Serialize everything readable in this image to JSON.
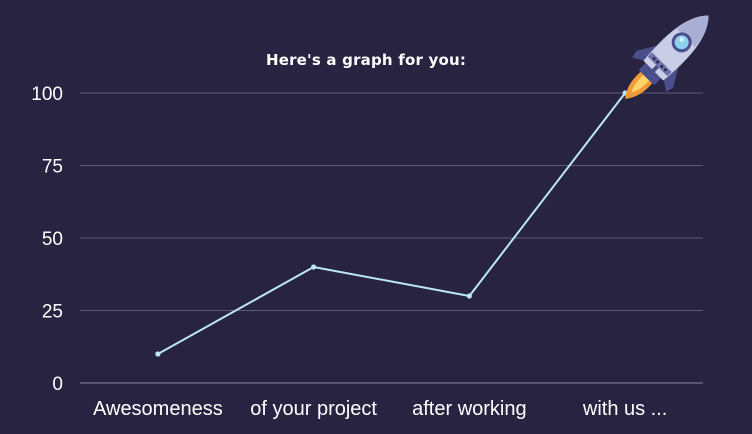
{
  "chart_data": {
    "type": "line",
    "title": "Here's a graph for you:",
    "categories": [
      "Awesomeness",
      "of your project",
      "after working",
      "with us ..."
    ],
    "series": [
      {
        "values": [
          10,
          40,
          30,
          100
        ]
      }
    ],
    "ylim": [
      0,
      100
    ],
    "yticks": [
      0,
      25,
      50,
      75,
      100
    ],
    "grid": true,
    "legend": "none"
  },
  "colors": {
    "background": "#272340",
    "line": "#bde8f1",
    "grid": "#5e5a78",
    "axis": "#8a86a3",
    "tick_text": "#ffffff",
    "rocket_body": "#c9cde6",
    "rocket_dark": "#4a4f8c",
    "rocket_window": "#8fd0ee",
    "flame": "#f19a38"
  },
  "decoration": {
    "icon": "rocket-icon"
  }
}
